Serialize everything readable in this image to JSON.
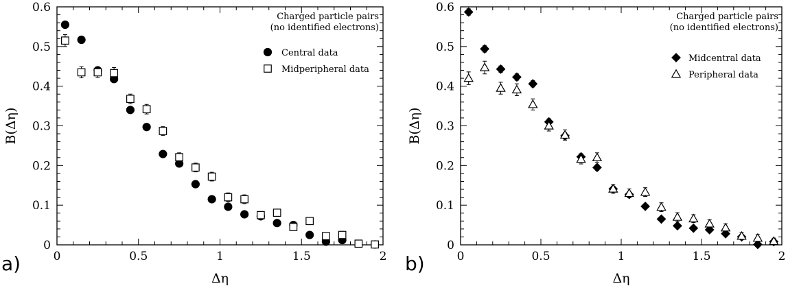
{
  "chart_data": [
    {
      "type": "scatter",
      "panel_label": "a)",
      "xlabel": "Δη",
      "ylabel": "B(Δη)",
      "xlim": [
        0,
        2
      ],
      "ylim": [
        0,
        0.6
      ],
      "x_ticks": [
        "0",
        "0.5",
        "1",
        "1.5",
        "2"
      ],
      "y_ticks": [
        "0",
        "0.1",
        "0.2",
        "0.3",
        "0.4",
        "0.5",
        "0.6"
      ],
      "note": [
        "Charged particle pairs",
        "(no identified electrons)"
      ],
      "legend_placement": "top-right",
      "series": [
        {
          "name": "Central data",
          "marker": "filled-circle",
          "color": "#000000",
          "x": [
            0.05,
            0.15,
            0.25,
            0.35,
            0.45,
            0.55,
            0.65,
            0.75,
            0.85,
            0.95,
            1.05,
            1.15,
            1.25,
            1.35,
            1.45,
            1.55,
            1.65,
            1.75,
            1.95
          ],
          "y": [
            0.555,
            0.517,
            0.44,
            0.418,
            0.34,
            0.297,
            0.229,
            0.205,
            0.153,
            0.115,
            0.096,
            0.077,
            0.072,
            0.055,
            0.05,
            0.025,
            0.008,
            0.012,
            0.001
          ],
          "err": [
            0.005,
            0.005,
            0.006,
            0.006,
            0.006,
            0.006,
            0.005,
            0.005,
            0.005,
            0.005,
            0.005,
            0.005,
            0.005,
            0.005,
            0.005,
            0.005,
            0.005,
            0.005,
            0.005
          ]
        },
        {
          "name": "Midperipheral data",
          "marker": "open-square",
          "color": "#000000",
          "x": [
            0.05,
            0.15,
            0.25,
            0.35,
            0.45,
            0.55,
            0.65,
            0.75,
            0.85,
            0.95,
            1.05,
            1.15,
            1.25,
            1.35,
            1.45,
            1.55,
            1.65,
            1.75,
            1.85,
            1.95
          ],
          "y": [
            0.515,
            0.435,
            0.435,
            0.433,
            0.368,
            0.342,
            0.287,
            0.221,
            0.195,
            0.172,
            0.12,
            0.115,
            0.075,
            0.081,
            0.045,
            0.06,
            0.022,
            0.025,
            0.003,
            0.001
          ],
          "err": [
            0.015,
            0.014,
            0.013,
            0.014,
            0.012,
            0.012,
            0.011,
            0.011,
            0.011,
            0.011,
            0.011,
            0.011,
            0.009,
            0.009,
            0.009,
            0.009,
            0.009,
            0.009,
            0.004,
            0.004
          ]
        }
      ]
    },
    {
      "type": "scatter",
      "panel_label": "b)",
      "xlabel": "Δη",
      "ylabel": "B(Δη)",
      "xlim": [
        0,
        2
      ],
      "ylim": [
        0,
        0.6
      ],
      "x_ticks": [
        "0",
        "0.5",
        "1",
        "1.5",
        "2"
      ],
      "y_ticks": [
        "0",
        "0.1",
        "0.2",
        "0.3",
        "0.4",
        "0.5",
        "0.6"
      ],
      "note": [
        "Charged particle pairs",
        "(no identified electrons)"
      ],
      "legend_placement": "top-right",
      "series": [
        {
          "name": "Midcentral data",
          "marker": "filled-diamond",
          "color": "#000000",
          "x": [
            0.05,
            0.15,
            0.25,
            0.35,
            0.45,
            0.55,
            0.65,
            0.75,
            0.85,
            0.95,
            1.05,
            1.15,
            1.25,
            1.35,
            1.45,
            1.55,
            1.65,
            1.75,
            1.85,
            1.95
          ],
          "y": [
            0.587,
            0.494,
            0.443,
            0.423,
            0.406,
            0.31,
            0.275,
            0.222,
            0.195,
            0.141,
            0.127,
            0.097,
            0.065,
            0.048,
            0.042,
            0.038,
            0.028,
            0.02,
            0.001,
            0.008
          ],
          "err": [
            0.008,
            0.008,
            0.008,
            0.008,
            0.008,
            0.008,
            0.008,
            0.008,
            0.007,
            0.007,
            0.007,
            0.006,
            0.006,
            0.006,
            0.006,
            0.006,
            0.006,
            0.006,
            0.005,
            0.005
          ]
        },
        {
          "name": "Peripheral data",
          "marker": "open-triangle",
          "color": "#000000",
          "x": [
            0.05,
            0.15,
            0.25,
            0.35,
            0.45,
            0.55,
            0.65,
            0.75,
            0.85,
            0.95,
            1.05,
            1.15,
            1.25,
            1.35,
            1.45,
            1.55,
            1.65,
            1.75,
            1.85,
            1.95
          ],
          "y": [
            0.42,
            0.447,
            0.395,
            0.391,
            0.354,
            0.3,
            0.277,
            0.216,
            0.22,
            0.141,
            0.13,
            0.133,
            0.095,
            0.07,
            0.066,
            0.053,
            0.043,
            0.022,
            0.017,
            0.009
          ],
          "err": [
            0.016,
            0.016,
            0.015,
            0.015,
            0.014,
            0.013,
            0.013,
            0.012,
            0.012,
            0.011,
            0.011,
            0.011,
            0.011,
            0.011,
            0.01,
            0.01,
            0.01,
            0.009,
            0.009,
            0.008
          ]
        }
      ]
    }
  ]
}
